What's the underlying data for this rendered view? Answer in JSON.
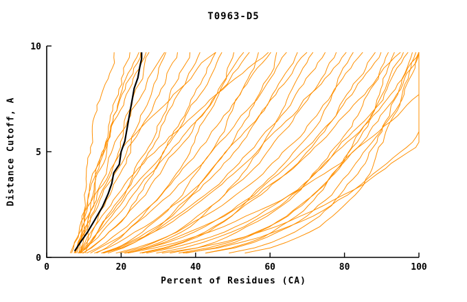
{
  "chart_data": {
    "type": "line",
    "title": "T0963-D5",
    "xlabel": "Percent of Residues (CA)",
    "ylabel": "Distance Cutoff, A",
    "xlim": [
      0,
      100
    ],
    "ylim": [
      0,
      10
    ],
    "x_ticks": [
      0,
      20,
      40,
      60,
      80,
      100
    ],
    "y_ticks": [
      0,
      5,
      10
    ],
    "grid": "off",
    "legend": "none",
    "colors": {
      "model": "#ff8f00",
      "reference": "#000000",
      "axis": "#000000"
    },
    "reference_series": {
      "name": "reference-model",
      "color": "#000000",
      "points": [
        [
          7.5,
          0.3
        ],
        [
          9,
          0.7
        ],
        [
          11,
          1.2
        ],
        [
          13,
          1.8
        ],
        [
          15,
          2.4
        ],
        [
          16.5,
          3.0
        ],
        [
          17.5,
          3.5
        ],
        [
          18,
          4.0
        ],
        [
          19.5,
          4.4
        ],
        [
          20,
          5.0
        ],
        [
          21,
          5.5
        ],
        [
          21.5,
          6.0
        ],
        [
          22,
          6.5
        ],
        [
          22.5,
          7.0
        ],
        [
          23,
          7.5
        ],
        [
          23.5,
          8.0
        ],
        [
          24.5,
          8.5
        ],
        [
          25,
          9.0
        ],
        [
          25.5,
          9.4
        ],
        [
          25.5,
          9.7
        ]
      ]
    },
    "series_format": [
      "x_start_percent_at_cutoff_0",
      "x_end_percent_at_cutoff_9.7",
      "shape_exponent"
    ],
    "series": [
      [
        10,
        18,
        2.2
      ],
      [
        7,
        22,
        1.0
      ],
      [
        8,
        25,
        1.3
      ],
      [
        7,
        28,
        0.9
      ],
      [
        6.5,
        30,
        1.1
      ],
      [
        8,
        32,
        0.8
      ],
      [
        7,
        35,
        1.0
      ],
      [
        9,
        27,
        1.6
      ],
      [
        6,
        24,
        0.9
      ],
      [
        7,
        38,
        0.7
      ],
      [
        8,
        42,
        0.9
      ],
      [
        6,
        45,
        0.6
      ],
      [
        7,
        48,
        0.8
      ],
      [
        8,
        50,
        0.55
      ],
      [
        6.5,
        52,
        0.7
      ],
      [
        7,
        55,
        0.9
      ],
      [
        8,
        58,
        0.5
      ],
      [
        6,
        60,
        0.65
      ],
      [
        7,
        62,
        0.45
      ],
      [
        8,
        65,
        0.7
      ],
      [
        6,
        68,
        0.5
      ],
      [
        7,
        70,
        0.6
      ],
      [
        8,
        72,
        0.4
      ],
      [
        6.5,
        75,
        0.55
      ],
      [
        7,
        78,
        0.45
      ],
      [
        8,
        80,
        0.6
      ],
      [
        6,
        82,
        0.35
      ],
      [
        7,
        85,
        0.5
      ],
      [
        8,
        88,
        0.4
      ],
      [
        6,
        90,
        0.45
      ],
      [
        7,
        92,
        0.3
      ],
      [
        8,
        95,
        0.5
      ],
      [
        6.5,
        97,
        0.35
      ],
      [
        7,
        100,
        0.4
      ],
      [
        8,
        100,
        0.25
      ],
      [
        6,
        100,
        0.3
      ],
      [
        7,
        98,
        0.2
      ],
      [
        8,
        96,
        0.28
      ],
      [
        6,
        93,
        0.22
      ],
      [
        7,
        100,
        0.18
      ],
      [
        9,
        60,
        1.4
      ],
      [
        10,
        45,
        1.8
      ],
      [
        7,
        112,
        0.5
      ],
      [
        8,
        118,
        0.35
      ],
      [
        6,
        125,
        0.4
      ]
    ]
  }
}
